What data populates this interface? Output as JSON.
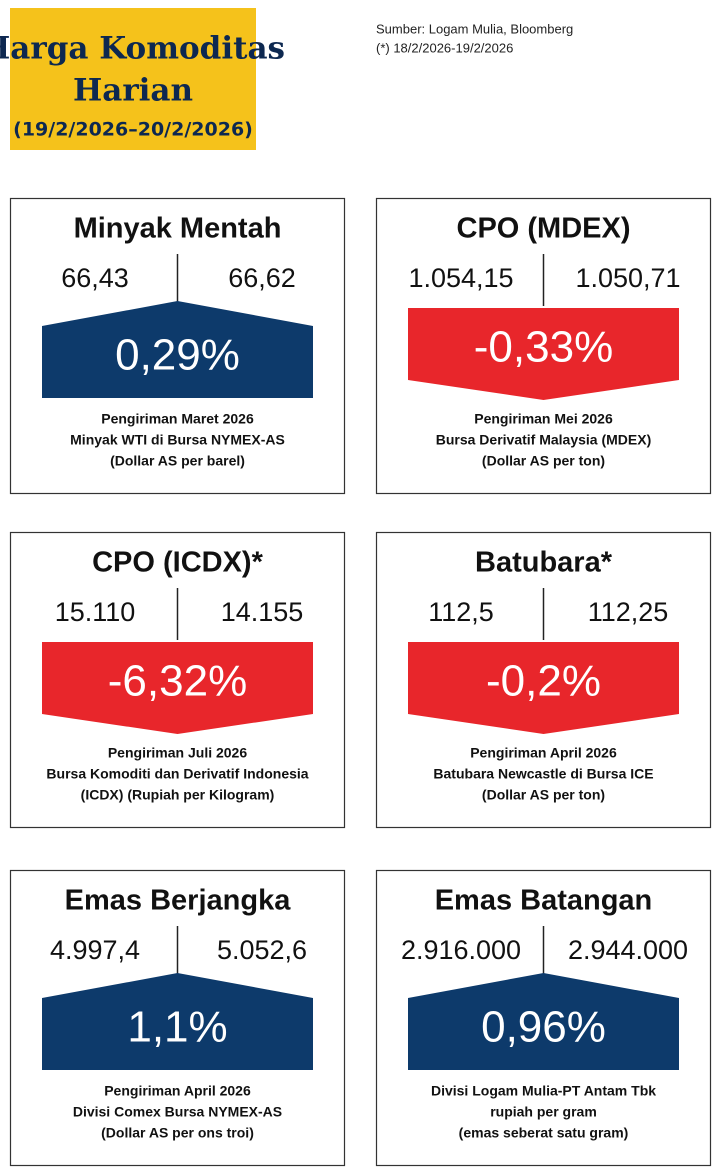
{
  "header": {
    "title_line1": "Harga Komoditas",
    "title_line2": "Harian",
    "period": "(19/2/2026–20/2/2026)"
  },
  "source": {
    "line1": "Sumber: Logam Mulia, Bloomberg",
    "line2": "(*) 18/2/2026-19/2/2026"
  },
  "cards": [
    {
      "title": "Minyak Mentah",
      "left": "66,43",
      "right": "66,62",
      "change": "0,29%",
      "trend": "up",
      "color": "#0d3a6b",
      "notes": [
        "Pengiriman Maret 2026",
        "Minyak WTI di Bursa NYMEX-AS",
        "(Dollar AS per barel)"
      ]
    },
    {
      "title": "CPO (MDEX)",
      "left": "1.054,15",
      "right": "1.050,71",
      "change": "-0,33%",
      "trend": "down",
      "color": "#e8262b",
      "notes": [
        "Pengiriman Mei 2026",
        "Bursa Derivatif Malaysia (MDEX)",
        "(Dollar AS per ton)"
      ]
    },
    {
      "title": "CPO (ICDX)*",
      "left": "15.110",
      "right": "14.155",
      "change": "-6,32%",
      "trend": "down",
      "color": "#e8262b",
      "notes": [
        "Pengiriman Juli 2026",
        "Bursa Komoditi dan Derivatif Indonesia",
        "(ICDX) (Rupiah per Kilogram)"
      ]
    },
    {
      "title": "Batubara*",
      "left": "112,5",
      "right": "112,25",
      "change": "-0,2%",
      "trend": "down",
      "color": "#e8262b",
      "notes": [
        "Pengiriman April 2026",
        "Batubara Newcastle di Bursa ICE",
        "(Dollar AS per ton)"
      ]
    },
    {
      "title": "Emas Berjangka",
      "left": "4.997,4",
      "right": "5.052,6",
      "change": "1,1%",
      "trend": "up",
      "color": "#0d3a6b",
      "notes": [
        "Pengiriman April 2026",
        "Divisi Comex Bursa NYMEX-AS",
        "(Dollar AS per ons troi)"
      ]
    },
    {
      "title": "Emas Batangan",
      "left": "2.916.000",
      "right": "2.944.000",
      "change": "0,96%",
      "trend": "up",
      "color": "#0d3a6b",
      "notes": [
        "Divisi Logam Mulia-PT Antam Tbk",
        "rupiah per gram",
        "(emas seberat satu gram)"
      ]
    }
  ]
}
